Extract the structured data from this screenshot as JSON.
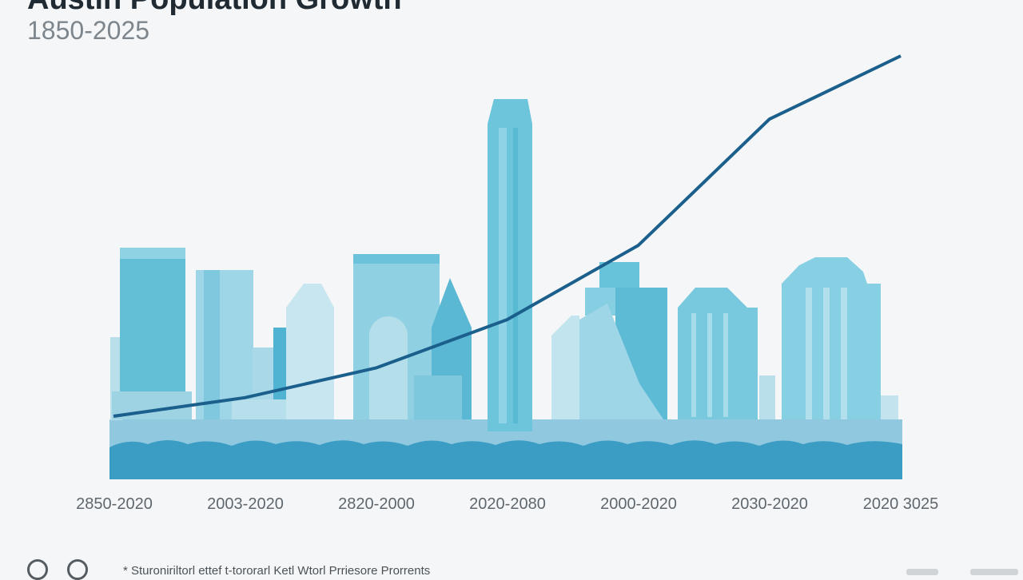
{
  "header": {
    "title": "Austin Population Growth",
    "subtitle": "1850-2025"
  },
  "footer": {
    "source_text": "* Sturoniriltorl ettef t-tororarl Ketl Wtorl Prriesore Prorrents"
  },
  "colors": {
    "line": "#1b5f8c",
    "skyline_dark": "#3b9cc4",
    "skyline_mid": "#67bfd6",
    "skyline_light": "#a6d6e6",
    "background": "#f5f6f7"
  },
  "chart_data": {
    "type": "line",
    "title": "Austin Population Growth",
    "subtitle": "1850-2025",
    "categories": [
      "2850-2020",
      "2003-2020",
      "2820-2000",
      "2020-2080",
      "2000-2020",
      "2030-2020",
      "2020 3025"
    ],
    "series": [
      {
        "values": [
          0.03,
          0.08,
          0.16,
          0.29,
          0.49,
          0.83,
          1.0
        ]
      }
    ],
    "ylim": [
      0,
      1
    ],
    "grid": false,
    "legend": "none",
    "background": "Austin skyline illustration"
  }
}
